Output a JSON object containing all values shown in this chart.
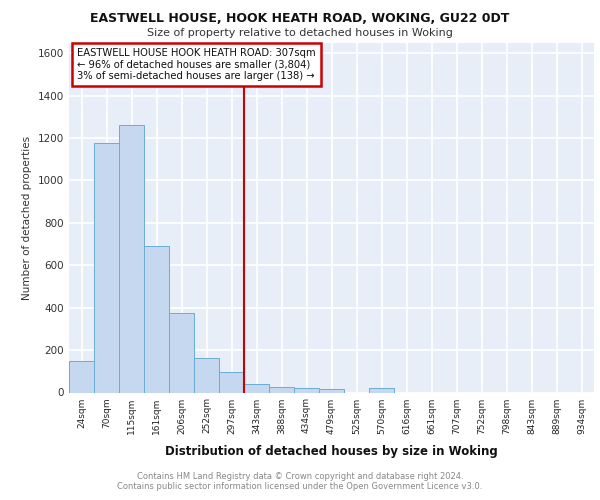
{
  "title1": "EASTWELL HOUSE, HOOK HEATH ROAD, WOKING, GU22 0DT",
  "title2": "Size of property relative to detached houses in Woking",
  "xlabel": "Distribution of detached houses by size in Woking",
  "ylabel": "Number of detached properties",
  "bar_labels": [
    "24sqm",
    "70sqm",
    "115sqm",
    "161sqm",
    "206sqm",
    "252sqm",
    "297sqm",
    "343sqm",
    "388sqm",
    "434sqm",
    "479sqm",
    "525sqm",
    "570sqm",
    "616sqm",
    "661sqm",
    "707sqm",
    "752sqm",
    "798sqm",
    "843sqm",
    "889sqm",
    "934sqm"
  ],
  "bar_values": [
    150,
    1175,
    1260,
    690,
    375,
    165,
    95,
    38,
    28,
    20,
    16,
    0,
    20,
    0,
    0,
    0,
    0,
    0,
    0,
    0,
    0
  ],
  "bar_color": "#c5d8f0",
  "bar_edge_color": "#6aadd5",
  "red_line_index": 6,
  "annotation_text": "EASTWELL HOUSE HOOK HEATH ROAD: 307sqm\n← 96% of detached houses are smaller (3,804)\n3% of semi-detached houses are larger (138) →",
  "annotation_box_color": "#ffffff",
  "annotation_border_color": "#cc0000",
  "ylim": [
    0,
    1650
  ],
  "yticks": [
    0,
    200,
    400,
    600,
    800,
    1000,
    1200,
    1400,
    1600
  ],
  "background_color": "#e8eef7",
  "grid_color": "#ffffff",
  "footer1": "Contains HM Land Registry data © Crown copyright and database right 2024.",
  "footer2": "Contains public sector information licensed under the Open Government Licence v3.0."
}
